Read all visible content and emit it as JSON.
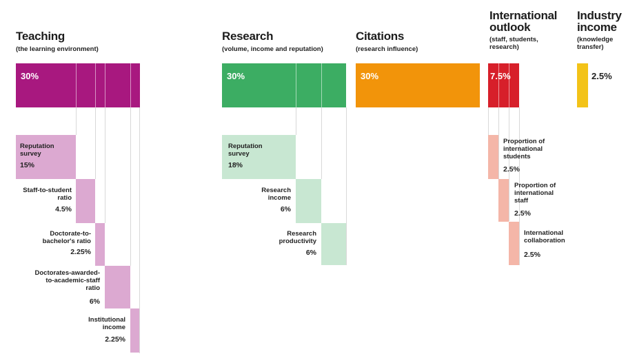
{
  "colors": {
    "teaching": "#a8187f",
    "teaching_light": "#dca9d1",
    "research": "#3cad63",
    "research_light": "#c8e7d2",
    "citations": "#f2940a",
    "international": "#d71f2a",
    "international_light": "#f4b6a8",
    "industry": "#f3c318"
  },
  "categories": [
    {
      "id": "teaching",
      "title": "Teaching",
      "subtitle": "(the learning environment)",
      "percent": "30%"
    },
    {
      "id": "research",
      "title": "Research",
      "subtitle": "(volume, income and reputation)",
      "percent": "30%"
    },
    {
      "id": "citations",
      "title": "Citations",
      "subtitle": "(research influence)",
      "percent": "30%"
    },
    {
      "id": "international",
      "title": "International\noutlook",
      "subtitle": "(staff, students,\nresearch)",
      "percent": "7.5%"
    },
    {
      "id": "industry",
      "title": "Industry\nincome",
      "subtitle": "(knowledge\ntransfer)",
      "percent": "2.5%"
    }
  ],
  "teaching_breakdown": [
    {
      "label": "Reputation\nsurvey",
      "value": "15%"
    },
    {
      "label": "Staff-to-student\nratio",
      "value": "4.5%"
    },
    {
      "label": "Doctorate-to-\nbachelor's ratio",
      "value": "2.25%"
    },
    {
      "label": "Doctorates-awarded-\nto-academic-staff\nratio",
      "value": "6%"
    },
    {
      "label": "Institutional\nincome",
      "value": "2.25%"
    }
  ],
  "research_breakdown": [
    {
      "label": "Reputation\nsurvey",
      "value": "18%"
    },
    {
      "label": "Research\nincome",
      "value": "6%"
    },
    {
      "label": "Research\nproductivity",
      "value": "6%"
    }
  ],
  "international_breakdown": [
    {
      "label": "Proportion of\ninternational\nstudents",
      "value": "2.5%"
    },
    {
      "label": "Proportion of\ninternational\nstaff",
      "value": "2.5%"
    },
    {
      "label": "International\ncollaboration",
      "value": "2.5%"
    }
  ]
}
